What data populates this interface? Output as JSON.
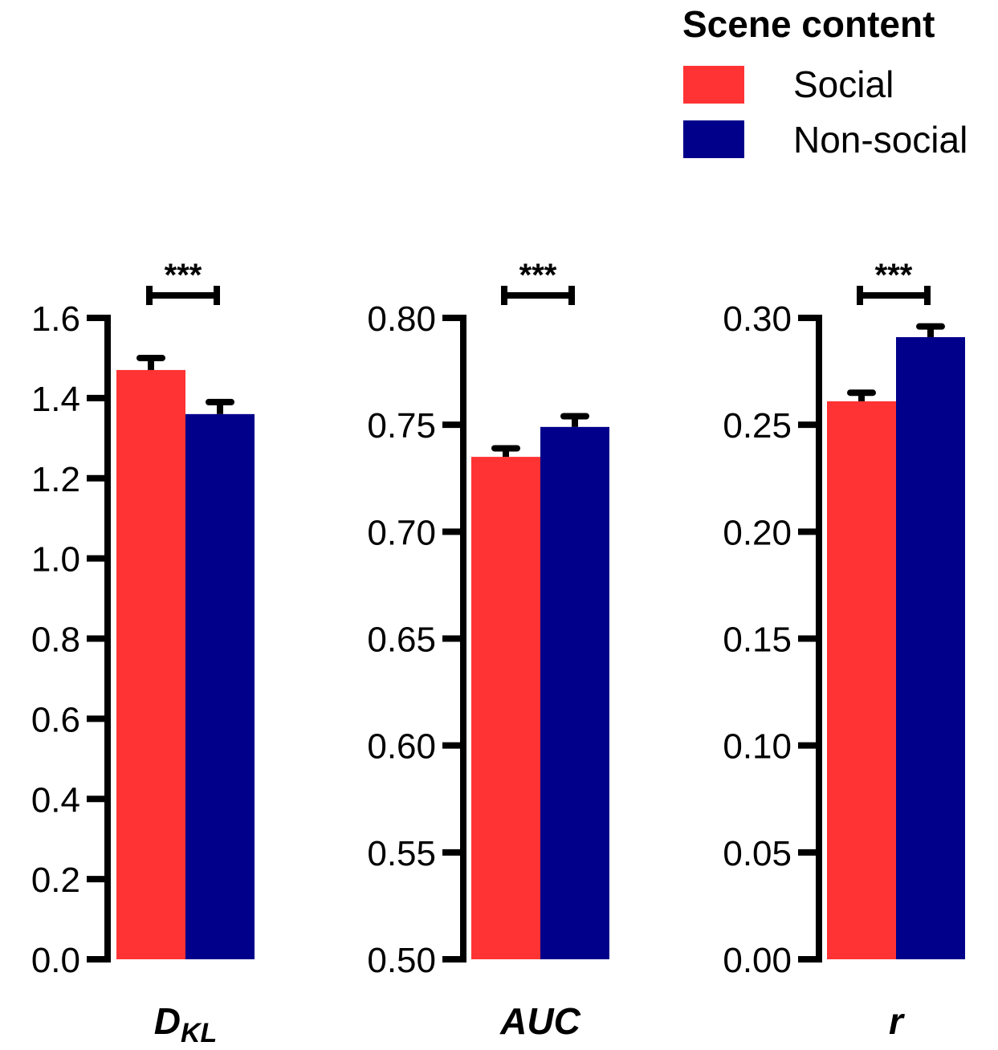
{
  "legend": {
    "title": "Scene content",
    "items": [
      {
        "label": "Social",
        "color": "#FF3333"
      },
      {
        "label": "Non-social",
        "color": "#00008B"
      }
    ]
  },
  "chart_data": [
    {
      "type": "bar",
      "xlabel": "D",
      "xlabel_sub": "KL",
      "ylim": [
        0,
        1.6
      ],
      "ticks": [
        0.0,
        0.2,
        0.4,
        0.6,
        0.8,
        1.0,
        1.2,
        1.4,
        1.6
      ],
      "tick_labels": [
        "0.0",
        "0.2",
        "0.4",
        "0.6",
        "0.8",
        "1.0",
        "1.2",
        "1.4",
        "1.6"
      ],
      "series": [
        {
          "name": "Social",
          "value": 1.47,
          "error": 0.03
        },
        {
          "name": "Non-social",
          "value": 1.36,
          "error": 0.03
        }
      ],
      "significance": "***"
    },
    {
      "type": "bar",
      "xlabel": "AUC",
      "xlabel_sub": "",
      "ylim": [
        0.5,
        0.8
      ],
      "ticks": [
        0.5,
        0.55,
        0.6,
        0.65,
        0.7,
        0.75,
        0.8
      ],
      "tick_labels": [
        "0.50",
        "0.55",
        "0.60",
        "0.65",
        "0.70",
        "0.75",
        "0.80"
      ],
      "series": [
        {
          "name": "Social",
          "value": 0.735,
          "error": 0.004
        },
        {
          "name": "Non-social",
          "value": 0.749,
          "error": 0.005
        }
      ],
      "significance": "***"
    },
    {
      "type": "bar",
      "xlabel": "r",
      "xlabel_sub": "",
      "ylim": [
        0,
        0.3
      ],
      "ticks": [
        0.0,
        0.05,
        0.1,
        0.15,
        0.2,
        0.25,
        0.3
      ],
      "tick_labels": [
        "0.00",
        "0.05",
        "0.10",
        "0.15",
        "0.20",
        "0.25",
        "0.30"
      ],
      "series": [
        {
          "name": "Social",
          "value": 0.261,
          "error": 0.004
        },
        {
          "name": "Non-social",
          "value": 0.291,
          "error": 0.005
        }
      ],
      "significance": "***"
    }
  ]
}
